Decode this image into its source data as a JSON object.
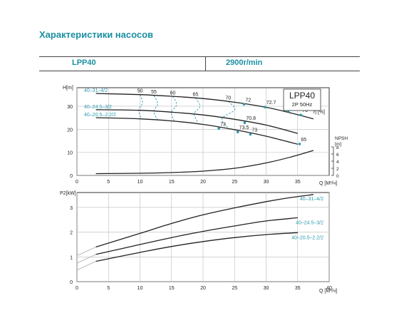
{
  "page": {
    "title": "Характеристики насосов"
  },
  "header": {
    "model": "LPP40",
    "speed": "2900r/min"
  },
  "colors": {
    "accent": "#1b8fa3",
    "curve": "#222222",
    "grid": "#bbbbbb",
    "eff": "#2a9bb0"
  },
  "chart_data": [
    {
      "type": "line",
      "legend_box": {
        "model": "LPP40",
        "spec": "2P  50Hz"
      },
      "xlabel": "Q [M³/ч]",
      "ylabel": "H[m]",
      "y2label": "NPSH\n[m]",
      "eff_label": "η [%]",
      "xlim": [
        0,
        40
      ],
      "ylim": [
        0,
        38
      ],
      "y2lim": [
        0,
        12
      ],
      "xticks": [
        0,
        5,
        10,
        15,
        20,
        25,
        30,
        35
      ],
      "yticks": [
        0,
        10,
        20,
        30
      ],
      "y2ticks": [
        0,
        2,
        4,
        6,
        8
      ],
      "grid": true,
      "series": [
        {
          "name": "40–31–4/2",
          "x": [
            3,
            10,
            15,
            20,
            25,
            30,
            34,
            37.5
          ],
          "y": [
            35.5,
            35.0,
            34.3,
            33.3,
            31.7,
            29.5,
            27.0,
            24.5
          ]
        },
        {
          "name": "40–24.5–3/2",
          "x": [
            3,
            10,
            15,
            20,
            25,
            30,
            35
          ],
          "y": [
            28.5,
            28.2,
            27.4,
            26.2,
            24.3,
            21.8,
            18.2
          ]
        },
        {
          "name": "40–20.5–2.2/2",
          "x": [
            3,
            10,
            15,
            20,
            25,
            30,
            35
          ],
          "y": [
            25.0,
            24.5,
            23.6,
            22.1,
            19.8,
            17.0,
            13.5
          ]
        }
      ],
      "npsh": {
        "x": [
          3,
          10,
          15,
          20,
          25,
          30,
          34,
          37.5
        ],
        "y": [
          0.5,
          0.6,
          0.8,
          1.2,
          2.0,
          3.5,
          5.2,
          7.0
        ]
      },
      "efficiency_contours": [
        {
          "label": "50",
          "pts": [
            [
              10,
              35
            ],
            [
              10.4,
              31.5
            ],
            [
              9.8,
              28.2
            ],
            [
              10.2,
              24.5
            ]
          ]
        },
        {
          "label": "55",
          "pts": [
            [
              12.2,
              34.6
            ],
            [
              12.8,
              31.0
            ],
            [
              12.2,
              27.8
            ],
            [
              12.8,
              24.0
            ]
          ]
        },
        {
          "label": "60",
          "pts": [
            [
              15.2,
              34.2
            ],
            [
              15.8,
              30.7
            ],
            [
              15.0,
              27.3
            ],
            [
              15.4,
              23.6
            ]
          ]
        },
        {
          "label": "65",
          "pts": [
            [
              18.8,
              33.5
            ],
            [
              19.5,
              30.0
            ],
            [
              18.6,
              26.7
            ],
            [
              19.2,
              22.8
            ]
          ]
        },
        {
          "label": "70",
          "pts": [
            [
              24,
              32.0
            ],
            [
              25,
              28.5
            ],
            [
              23,
              24.6
            ],
            [
              24,
              20.5
            ]
          ]
        }
      ],
      "eff_points": [
        {
          "label": "72",
          "x": 26.5,
          "y": 30.8
        },
        {
          "label": "72.7",
          "x": 29.8,
          "y": 29.6
        },
        {
          "label": "72",
          "x": 33.5,
          "y": 27.8
        },
        {
          "label": "70",
          "x": 35.5,
          "y": 26.2
        },
        {
          "label": "70.8",
          "x": 26.6,
          "y": 22.8
        },
        {
          "label": "73",
          "x": 22.5,
          "y": 20.3
        },
        {
          "label": "73.5",
          "x": 25.5,
          "y": 18.8
        },
        {
          "label": "73",
          "x": 27.5,
          "y": 17.8
        },
        {
          "label": "65",
          "x": 35.3,
          "y": 13.6
        }
      ]
    },
    {
      "type": "line",
      "xlabel": "Q [M³/ч]",
      "ylabel": "P2[kW]",
      "xlim": [
        0,
        40
      ],
      "ylim": [
        0,
        3.6
      ],
      "xticks": [
        0,
        5,
        10,
        15,
        20,
        25,
        30,
        35,
        40
      ],
      "yticks": [
        0,
        1,
        2,
        3
      ],
      "grid": true,
      "series": [
        {
          "name": "40–31–4/2",
          "x": [
            3,
            10,
            15,
            20,
            25,
            30,
            34,
            37.5
          ],
          "y": [
            1.4,
            1.95,
            2.35,
            2.7,
            2.98,
            3.23,
            3.4,
            3.52
          ]
        },
        {
          "name": "40–24.5–3/2",
          "x": [
            3,
            10,
            15,
            20,
            25,
            30,
            35
          ],
          "y": [
            1.1,
            1.5,
            1.78,
            2.03,
            2.25,
            2.45,
            2.58
          ]
        },
        {
          "name": "40–20.5–2.2/2",
          "x": [
            3,
            10,
            15,
            20,
            25,
            30,
            35
          ],
          "y": [
            0.82,
            1.18,
            1.42,
            1.62,
            1.78,
            1.9,
            1.98
          ]
        }
      ]
    }
  ]
}
